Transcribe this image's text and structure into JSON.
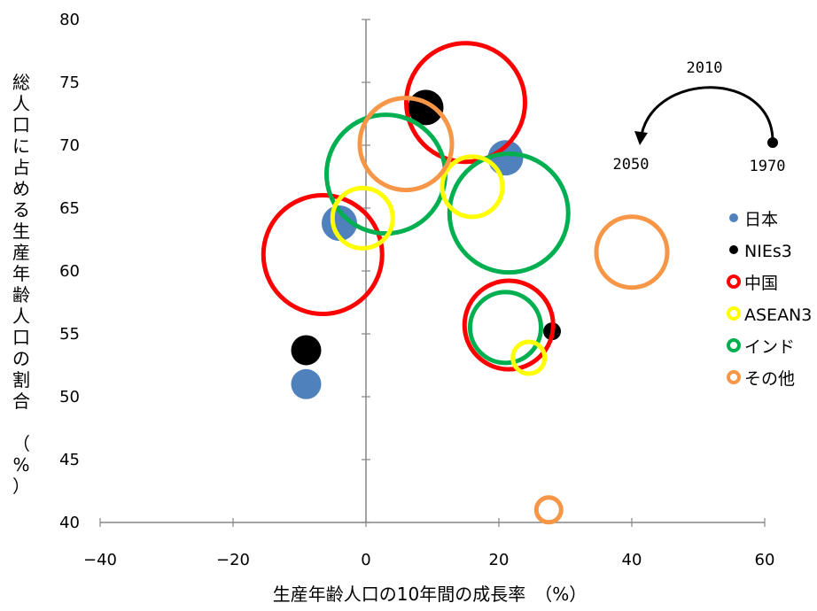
{
  "chart_data": {
    "type": "bubble",
    "title": "",
    "xlabel": "生産年齢人口の10年間の成長率　（%）",
    "ylabel": "総人口に占める生産年齢人口の割合　（%）",
    "xlim": [
      -40,
      60
    ],
    "ylim": [
      40,
      80
    ],
    "x_ticks": [
      "−40",
      "−20",
      "0",
      "20",
      "40",
      "60"
    ],
    "y_ticks": [
      "40",
      "45",
      "50",
      "55",
      "60",
      "65",
      "70",
      "75",
      "80"
    ],
    "grid": false,
    "legend_position": "right",
    "series": [
      {
        "name": "日本",
        "color": "#4f81bd",
        "style": "filled",
        "points": [
          {
            "x": -9,
            "y": 51,
            "size": "small"
          },
          {
            "x": -4,
            "y": 63.8,
            "size": "medium"
          },
          {
            "x": 21,
            "y": 69,
            "size": "medium"
          }
        ]
      },
      {
        "name": "NIEs3",
        "color": "#000000",
        "style": "filled",
        "points": [
          {
            "x": -9,
            "y": 53.7,
            "size": "small"
          },
          {
            "x": 9,
            "y": 73,
            "size": "medium"
          },
          {
            "x": 28,
            "y": 55.2,
            "size": "tiny"
          }
        ]
      },
      {
        "name": "中国",
        "color": "#ff0000",
        "style": "ring",
        "points": [
          {
            "x": -6.5,
            "y": 61.3,
            "size": "large"
          },
          {
            "x": 15,
            "y": 73.4,
            "size": "large"
          },
          {
            "x": 21.5,
            "y": 55.7,
            "size": "medium-large"
          }
        ]
      },
      {
        "name": "ASEAN3",
        "color": "#ffff00",
        "style": "ring",
        "points": [
          {
            "x": -0.5,
            "y": 64.2,
            "size": "small-medium"
          },
          {
            "x": 16,
            "y": 66.7,
            "size": "small-medium"
          },
          {
            "x": 24.5,
            "y": 53.1,
            "size": "small"
          }
        ]
      },
      {
        "name": "インド",
        "color": "#00b050",
        "style": "ring",
        "points": [
          {
            "x": 3,
            "y": 67.7,
            "size": "large"
          },
          {
            "x": 21.5,
            "y": 64.6,
            "size": "large"
          },
          {
            "x": 21,
            "y": 55.5,
            "size": "medium"
          }
        ]
      },
      {
        "name": "その他",
        "color": "#f79646",
        "style": "ring",
        "points": [
          {
            "x": 6,
            "y": 70.1,
            "size": "medium-large"
          },
          {
            "x": 40,
            "y": 61.5,
            "size": "medium"
          },
          {
            "x": 27.5,
            "y": 41,
            "size": "tiny"
          }
        ]
      }
    ],
    "annotation": {
      "top": "2010",
      "left": "2050",
      "right": "1970"
    }
  }
}
